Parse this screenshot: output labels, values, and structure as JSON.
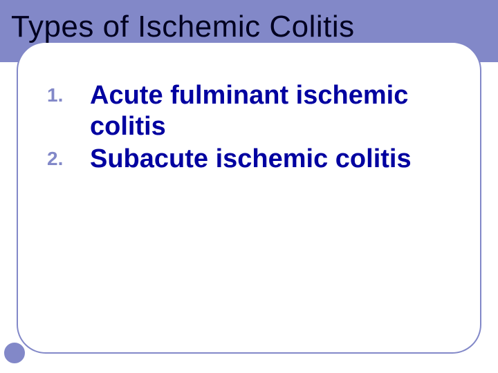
{
  "slide": {
    "title": "Types of Ischemic Colitis",
    "items": [
      {
        "number": "1.",
        "text": "Acute fulminant ischemic colitis"
      },
      {
        "number": "2.",
        "text": "Subacute ischemic colitis"
      }
    ]
  },
  "style": {
    "accent_color": "#8288c8",
    "title_color": "#000020",
    "item_text_color": "#0000a0",
    "background_color": "#ffffff",
    "title_fontsize": 44,
    "item_fontsize": 38,
    "number_fontsize": 28,
    "panel_border_radius": 42
  }
}
